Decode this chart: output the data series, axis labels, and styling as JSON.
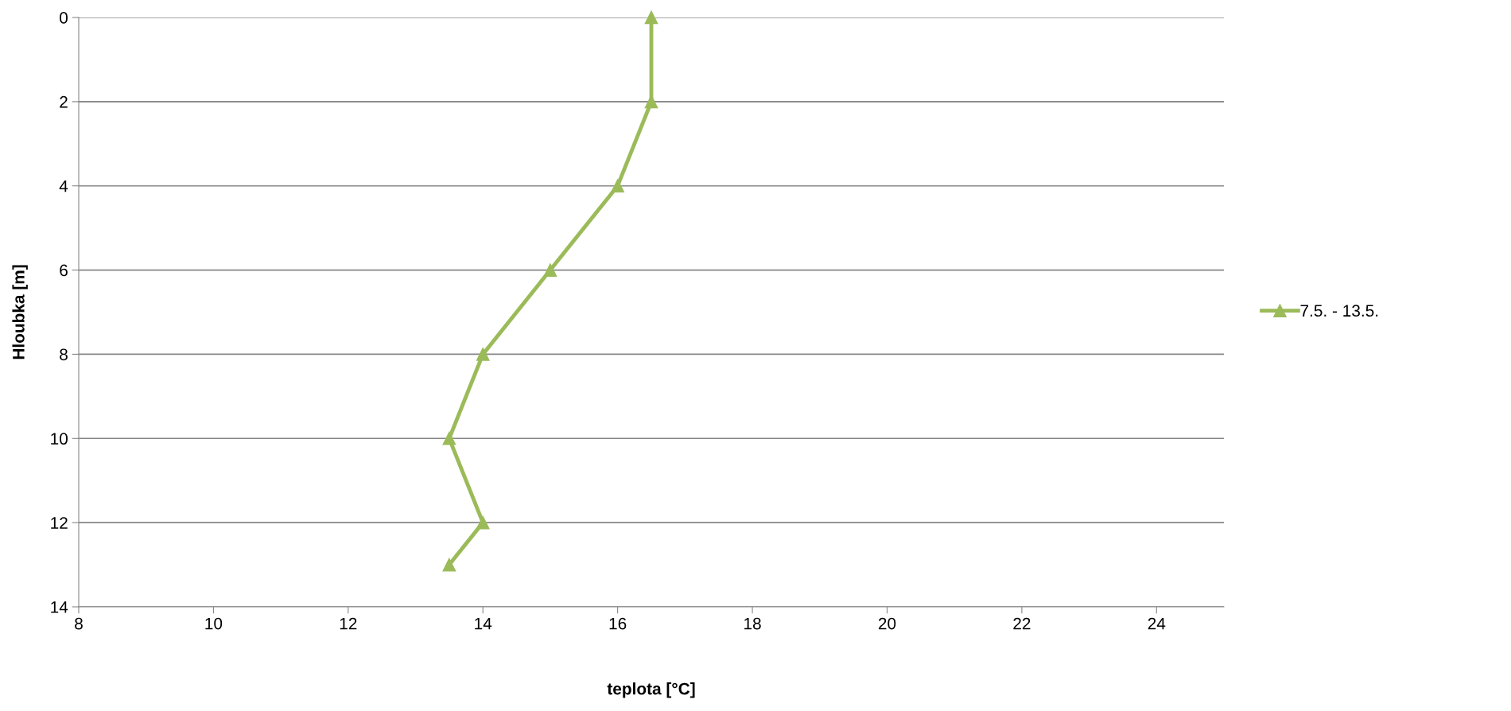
{
  "chart_data": {
    "type": "line",
    "xlabel": "teplota [°C]",
    "ylabel": "Hloubka [m]",
    "series": [
      {
        "name": "7.5. - 13.5.",
        "color": "#9bbb59",
        "x": [
          16.5,
          16.5,
          16,
          15,
          14,
          13.5,
          14,
          13.5
        ],
        "values": [
          0,
          2,
          4,
          6,
          8,
          10,
          12,
          13
        ]
      }
    ],
    "xlim": [
      8,
      25
    ],
    "xticks": [
      8,
      10,
      12,
      14,
      16,
      18,
      20,
      22,
      24
    ],
    "ylim": [
      14,
      0
    ],
    "yticks": [
      0,
      2,
      4,
      6,
      8,
      10,
      12,
      14
    ],
    "grid": "y",
    "legend": "right",
    "marker": "triangle",
    "line_style": "solid"
  }
}
